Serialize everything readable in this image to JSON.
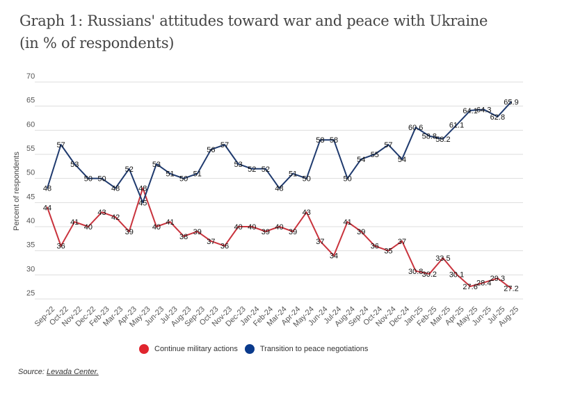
{
  "chart_data": {
    "type": "line",
    "title": "Graph 1: Russians' attitudes toward war and peace with Ukraine",
    "subtitle": "(in % of respondents)",
    "xlabel": "",
    "ylabel": "Percent of respondents",
    "ylim": [
      25,
      70
    ],
    "yticks": [
      25,
      30,
      35,
      40,
      45,
      50,
      55,
      60,
      65,
      70
    ],
    "grid": true,
    "legend_position": "bottom",
    "categories": [
      "Sep-22",
      "Oct-22",
      "Nov-22",
      "Dec-22",
      "Feb-23",
      "Mar-23",
      "Apr-23",
      "May-23",
      "Jun-23",
      "Jul-23",
      "Aug-23",
      "Sep-23",
      "Oct-23",
      "Nov-23",
      "Dec-23",
      "Jan-24",
      "Feb-24",
      "Mar-24",
      "Apr-24",
      "May-24",
      "Jun-24",
      "Jul-24",
      "Aug-24",
      "Sep-24",
      "Oct-24",
      "Nov-24",
      "Dec-24",
      "Jan-25",
      "Feb-25",
      "Mar-25",
      "Apr-25",
      "May-25",
      "Jun-25",
      "Jul-25",
      "Aug-25"
    ],
    "series": [
      {
        "name": "Continue military actions",
        "color": "#c9333d",
        "legend_color": "#e0252e",
        "values": [
          44,
          36,
          41,
          40,
          43,
          42,
          39,
          48,
          40,
          41,
          38,
          39,
          37,
          36,
          40,
          40,
          39,
          40,
          39,
          43,
          37,
          34,
          41,
          39,
          36,
          35,
          37,
          30.8,
          30.2,
          33.5,
          30.1,
          27.6,
          28.4,
          29.3,
          27.2
        ]
      },
      {
        "name": "Transition to peace negotiations",
        "color": "#1f3a6e",
        "legend_color": "#0a3a8c",
        "values": [
          48,
          57,
          53,
          50,
          50,
          48,
          52,
          45,
          53,
          51,
          50,
          51,
          56,
          57,
          53,
          52,
          52,
          48,
          51,
          50,
          58,
          58,
          50,
          54,
          55,
          57,
          54,
          60.6,
          58.8,
          58.2,
          61.1,
          64.1,
          64.3,
          62.8,
          65.9
        ]
      }
    ]
  },
  "source": {
    "prefix": "Source: ",
    "link_text": "Levada Center."
  }
}
